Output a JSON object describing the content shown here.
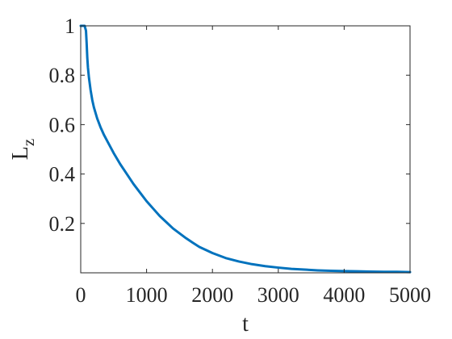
{
  "chart_data": {
    "type": "line",
    "title": "",
    "xlabel": "t",
    "ylabel": "L",
    "ylabel_subscript": "z",
    "xlim": [
      0,
      5000
    ],
    "ylim": [
      0,
      1
    ],
    "xticks": [
      0,
      1000,
      2000,
      3000,
      4000,
      5000
    ],
    "xtick_labels": [
      "0",
      "1000",
      "2000",
      "3000",
      "4000",
      "5000"
    ],
    "yticks": [
      0.2,
      0.4,
      0.6,
      0.8,
      1
    ],
    "ytick_labels": [
      "0.2",
      "0.4",
      "0.6",
      "0.8",
      "1"
    ],
    "grid": false,
    "series": [
      {
        "color": "#0072BD",
        "x": [
          0,
          20,
          40,
          60,
          80,
          90,
          100,
          110,
          125,
          150,
          175,
          200,
          250,
          300,
          350,
          400,
          450,
          500,
          600,
          700,
          800,
          900,
          1000,
          1100,
          1200,
          1300,
          1400,
          1500,
          1600,
          1700,
          1800,
          2000,
          2200,
          2400,
          2600,
          2800,
          3000,
          3200,
          3400,
          3600,
          3800,
          4000,
          4200,
          4400,
          4600,
          4800,
          5000
        ],
        "y": [
          1.0,
          1.0,
          1.0,
          1.0,
          0.98,
          0.93,
          0.87,
          0.83,
          0.79,
          0.74,
          0.7,
          0.67,
          0.625,
          0.59,
          0.56,
          0.535,
          0.51,
          0.485,
          0.44,
          0.4,
          0.36,
          0.325,
          0.29,
          0.26,
          0.23,
          0.205,
          0.18,
          0.16,
          0.14,
          0.122,
          0.105,
          0.08,
          0.06,
          0.046,
          0.035,
          0.027,
          0.021,
          0.016,
          0.013,
          0.01,
          0.008,
          0.007,
          0.006,
          0.005,
          0.004,
          0.004,
          0.003
        ]
      }
    ]
  }
}
